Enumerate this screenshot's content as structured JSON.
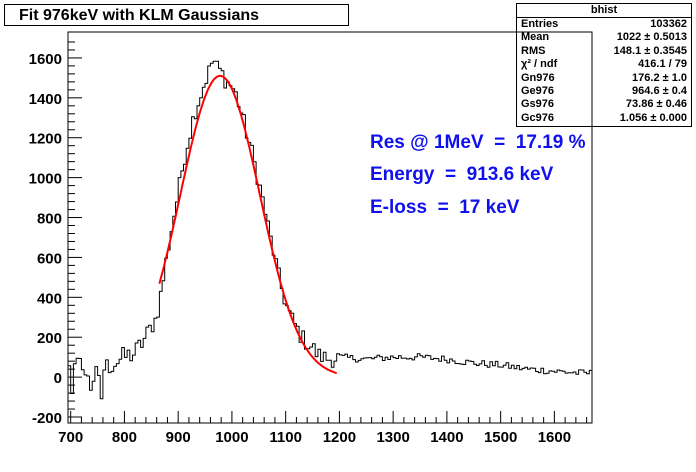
{
  "title": "Fit 976keV with KLM Gaussians",
  "stats": {
    "name": "bhist",
    "rows": [
      {
        "label": "Entries",
        "value": "103362"
      },
      {
        "label": "Mean",
        "value": "1022 ± 0.5013"
      },
      {
        "label": "RMS",
        "value": "148.1 ± 0.3545"
      },
      {
        "label": "χ² / ndf",
        "value": "416.1 / 79"
      },
      {
        "label": "Gn976",
        "value": "176.2 ± 1.0"
      },
      {
        "label": "Ge976",
        "value": "964.6 ± 0.4"
      },
      {
        "label": "Gs976",
        "value": "73.86 ± 0.46"
      },
      {
        "label": "Gc976",
        "value": "1.056 ± 0.000"
      }
    ]
  },
  "annotations": {
    "res": "Res @ 1MeV  =  17.19 %",
    "energy": "Energy  =  913.6 keV",
    "eloss": "E-loss  =  17 keV"
  },
  "chart_data": {
    "type": "histogram",
    "xlim": [
      695,
      1670
    ],
    "ylim": [
      -230,
      1730
    ],
    "xticks": [
      700,
      800,
      900,
      1000,
      1100,
      1200,
      1300,
      1400,
      1500,
      1600
    ],
    "yticks": [
      -200,
      0,
      200,
      400,
      600,
      800,
      1000,
      1200,
      1400,
      1600
    ],
    "grid": false,
    "histogram_color": "#000000",
    "fit_color": "#ff0000",
    "annotation_color": "#1010ee",
    "histogram_points": [
      [
        700,
        40
      ],
      [
        720,
        60
      ],
      [
        740,
        20
      ],
      [
        760,
        40
      ],
      [
        780,
        70
      ],
      [
        800,
        100
      ],
      [
        820,
        120
      ],
      [
        840,
        200
      ],
      [
        860,
        300
      ],
      [
        870,
        450
      ],
      [
        880,
        620
      ],
      [
        890,
        780
      ],
      [
        900,
        920
      ],
      [
        910,
        1080
      ],
      [
        920,
        1200
      ],
      [
        930,
        1320
      ],
      [
        940,
        1400
      ],
      [
        950,
        1480
      ],
      [
        960,
        1550
      ],
      [
        965,
        1600
      ],
      [
        970,
        1560
      ],
      [
        980,
        1530
      ],
      [
        990,
        1480
      ],
      [
        1000,
        1460
      ],
      [
        1010,
        1400
      ],
      [
        1020,
        1300
      ],
      [
        1030,
        1200
      ],
      [
        1040,
        1100
      ],
      [
        1050,
        980
      ],
      [
        1060,
        860
      ],
      [
        1070,
        720
      ],
      [
        1080,
        600
      ],
      [
        1090,
        470
      ],
      [
        1100,
        370
      ],
      [
        1110,
        300
      ],
      [
        1120,
        250
      ],
      [
        1130,
        200
      ],
      [
        1140,
        170
      ],
      [
        1150,
        150
      ],
      [
        1160,
        110
      ],
      [
        1170,
        100
      ],
      [
        1180,
        90
      ],
      [
        1200,
        100
      ],
      [
        1250,
        90
      ],
      [
        1300,
        100
      ],
      [
        1350,
        100
      ],
      [
        1400,
        90
      ],
      [
        1450,
        70
      ],
      [
        1500,
        60
      ],
      [
        1550,
        40
      ],
      [
        1600,
        30
      ],
      [
        1650,
        20
      ]
    ],
    "fit_range": [
      865,
      1195
    ],
    "fit_params": {
      "amplitude": 1510,
      "mean": 978,
      "sigma": 73.86
    }
  }
}
